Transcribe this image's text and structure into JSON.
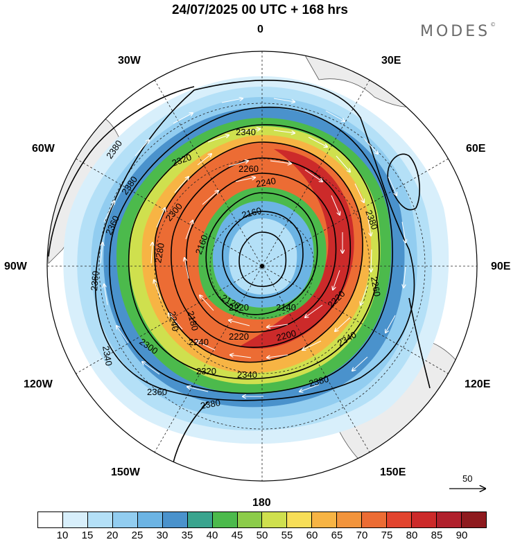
{
  "title": "24/07/2025  00 UTC  + 168 hrs",
  "brand": "MODES",
  "brand_mark": "©",
  "longitude_labels": {
    "lon_0": "0",
    "lon_30e": "30E",
    "lon_60e": "60E",
    "lon_90e": "90E",
    "lon_120e": "120E",
    "lon_150e": "150E",
    "lon_180": "180",
    "lon_150w": "150W",
    "lon_120w": "120W",
    "lon_90w": "90W",
    "lon_60w": "60W",
    "lon_30w": "30W"
  },
  "contour_labels": [
    "2380",
    "2380",
    "2360",
    "2360",
    "2340",
    "2340",
    "2320",
    "2300",
    "2300",
    "2280",
    "2260",
    "2240",
    "2240",
    "2220",
    "2220",
    "2200",
    "2180",
    "2160",
    "2160",
    "2140",
    "2120",
    "2340",
    "2380",
    "2380",
    "2360",
    "2380",
    "2340",
    "2320",
    "2240",
    "2220",
    "2260"
  ],
  "reference_vector": {
    "label": "50"
  },
  "colorbar": {
    "colors": [
      "#ffffff",
      "#d8effb",
      "#b4e0f7",
      "#92cdf0",
      "#6cb4e4",
      "#4a92cc",
      "#3aa48e",
      "#4cba4c",
      "#8ccc4a",
      "#cfe04e",
      "#f7de58",
      "#f7b444",
      "#f2943c",
      "#ec6c34",
      "#e2442e",
      "#cc2a2a",
      "#b0202c",
      "#8e1a1e"
    ],
    "tick_labels": [
      "10",
      "15",
      "20",
      "25",
      "30",
      "35",
      "40",
      "45",
      "50",
      "55",
      "60",
      "65",
      "70",
      "75",
      "80",
      "85",
      "90"
    ]
  }
}
